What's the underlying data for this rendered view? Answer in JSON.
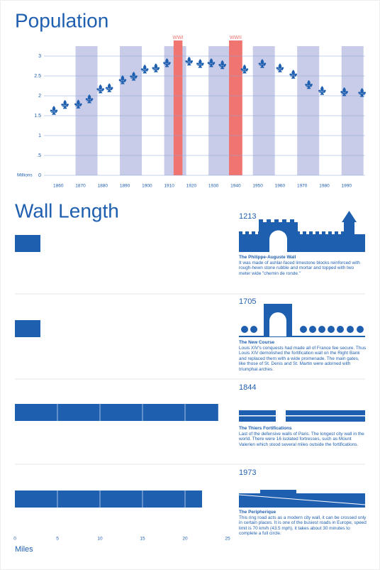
{
  "chart_data": [
    {
      "type": "scatter",
      "title": "Population",
      "y_label": "Millions",
      "x": [
        1858,
        1863,
        1869,
        1874,
        1879,
        1883,
        1889,
        1894,
        1899,
        1904,
        1909,
        1919,
        1924,
        1929,
        1934,
        1944,
        1952,
        1960,
        1966,
        1973,
        1979,
        1989,
        1997
      ],
      "values": [
        1.64,
        1.79,
        1.8,
        1.93,
        2.18,
        2.21,
        2.41,
        2.5,
        2.68,
        2.71,
        2.84,
        2.88,
        2.82,
        2.84,
        2.79,
        2.68,
        2.82,
        2.71,
        2.55,
        2.29,
        2.14,
        2.11,
        2.09
      ],
      "color": "#1f5fb0",
      "band_color": "#c8cce8",
      "grid": true,
      "xlim": [
        1850,
        2000
      ],
      "ylim": [
        0,
        3.25
      ],
      "xticks": [
        1860,
        1870,
        1880,
        1890,
        1900,
        1910,
        1920,
        1930,
        1940,
        1950,
        1960,
        1970,
        1980,
        1990
      ],
      "yticks": [
        0,
        {
          "value": 0.5,
          "label": ".5"
        },
        1,
        1.5,
        2,
        2.5,
        3
      ],
      "annotations": [
        {
          "label": "WWI",
          "x": [
            1912,
            1916
          ],
          "color": "#f07470"
        },
        {
          "label": "WWII",
          "x": [
            1937,
            1943
          ],
          "color": "#f07470"
        }
      ]
    },
    {
      "type": "bar",
      "horizontal": true,
      "title": "Wall Length",
      "x_label": "Miles",
      "categories": [
        "1213",
        "1705",
        "1844",
        "1973"
      ],
      "values": [
        3,
        3,
        23.9,
        22
      ],
      "color": "#1f5fb0",
      "xlim": [
        0,
        25
      ],
      "xticks": [
        0,
        5,
        10,
        15,
        20,
        25
      ],
      "descriptions": [
        {
          "title": "The Philippe-Auguste Wall",
          "text": "It was made of ashlar-faced limestone blocks reinforced with rough-hewn stone rubble and mortar and topped with two meter wide \"chemin de ronde.\""
        },
        {
          "title": "The New Course",
          "text": "Louis XIV's conquests had made all of France fee secure. Thus Louis XIV demolished the fortification wall on the Right Bank and replaced them with a wide promenade. The main gates, like those of St. Denis and St. Martin were adorned with triumphal arches."
        },
        {
          "title": "The Thiers Fortifications",
          "text": "Last of the defensive walls of Paris. The longest city wall in the world. There were 16 isolated fortresses, such as Mount Valerien which stood several miles outside the fortifications."
        },
        {
          "title": "The Peripherique",
          "text": "This ring road acts as a modern city wall, it can be crossed only in certain places. It is one of the busiest roads in Europe, speed limit is 70 km/h (43.5 mph), it takes about 30 minutes to complete a full circle."
        }
      ]
    }
  ]
}
